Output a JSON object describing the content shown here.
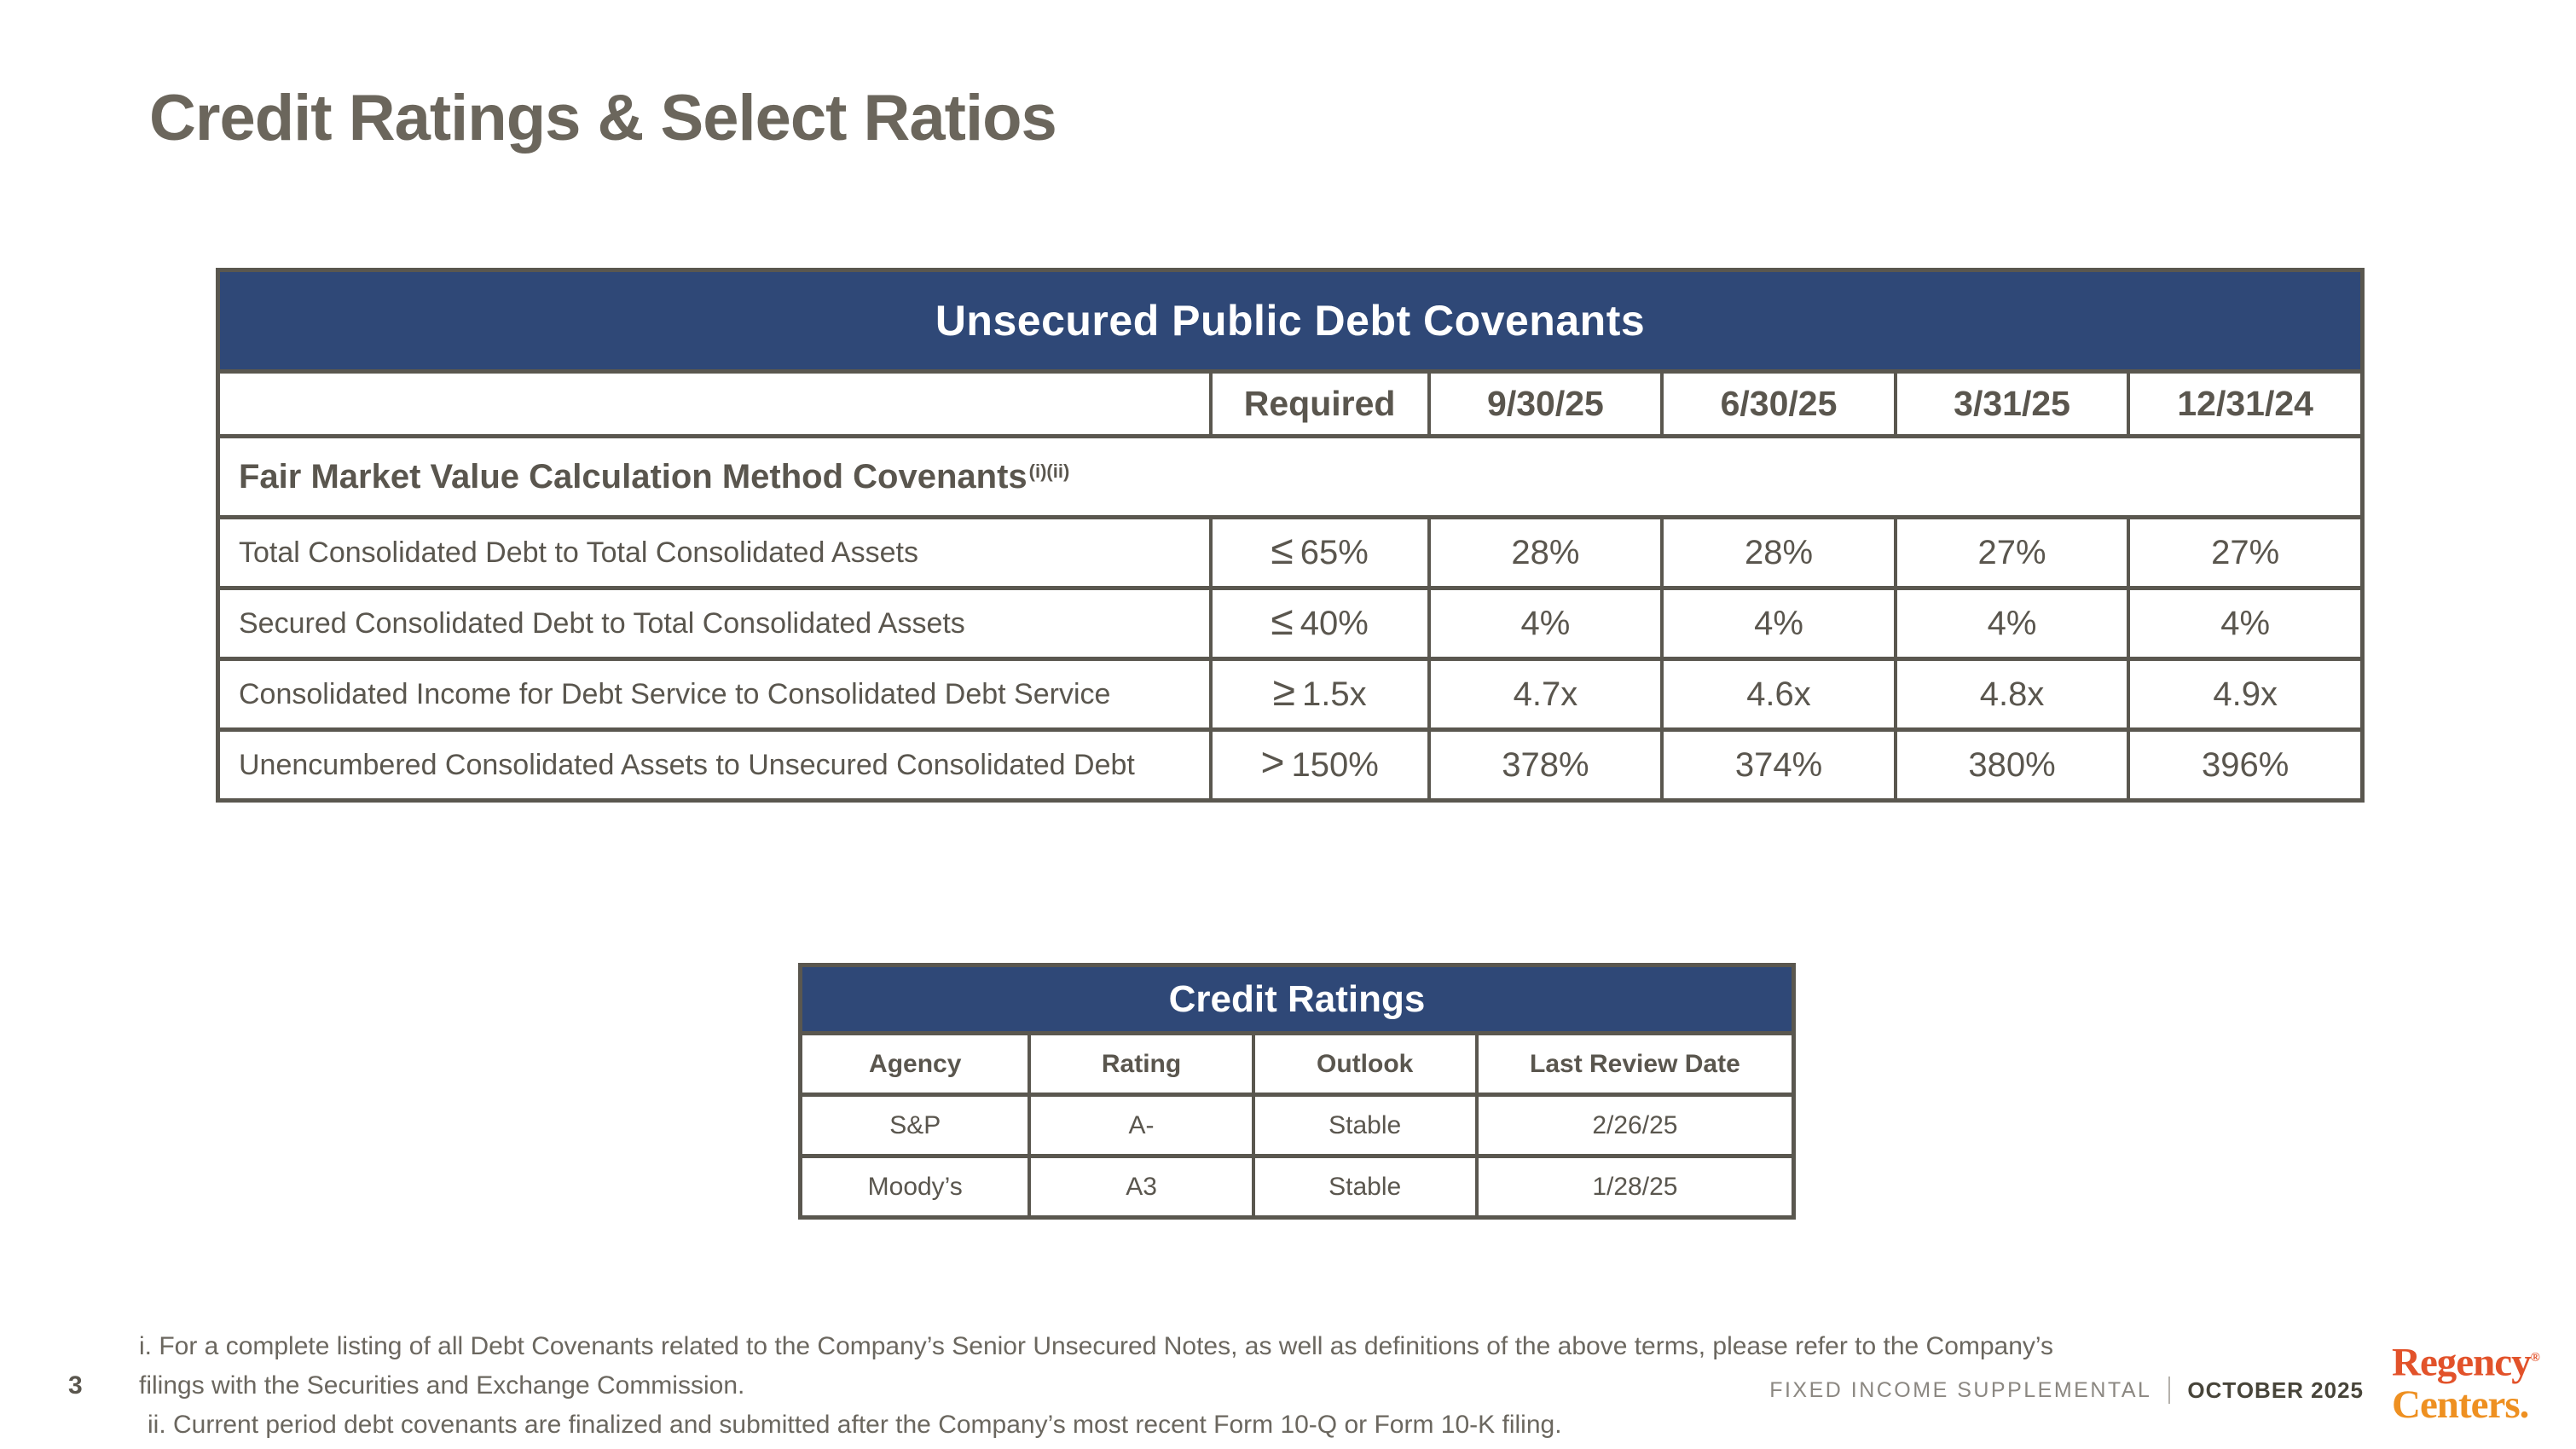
{
  "slide": {
    "title": "Credit Ratings & Select Ratios",
    "page_number": "3"
  },
  "covenants_table": {
    "title": "Unsecured Public Debt Covenants",
    "columns": [
      "",
      "Required",
      "9/30/25",
      "6/30/25",
      "3/31/25",
      "12/31/24"
    ],
    "section_label": "Fair Market Value Calculation Method Covenants",
    "section_superscript": "(i)(ii)",
    "rows": [
      {
        "label": "Total Consolidated Debt to Total Consolidated Assets",
        "required_symbol": "≤",
        "required_value": "65%",
        "values": [
          "28%",
          "28%",
          "27%",
          "27%"
        ]
      },
      {
        "label": "Secured Consolidated Debt to Total Consolidated Assets",
        "required_symbol": "≤",
        "required_value": "40%",
        "values": [
          "4%",
          "4%",
          "4%",
          "4%"
        ]
      },
      {
        "label": "Consolidated Income for Debt Service to Consolidated Debt Service",
        "required_symbol": "≥",
        "required_value": "1.5x",
        "values": [
          "4.7x",
          "4.6x",
          "4.8x",
          "4.9x"
        ]
      },
      {
        "label": "Unencumbered Consolidated Assets to Unsecured Consolidated Debt",
        "required_symbol": ">",
        "required_value": "150%",
        "values": [
          "378%",
          "374%",
          "380%",
          "396%"
        ]
      }
    ]
  },
  "ratings_table": {
    "title": "Credit Ratings",
    "columns": [
      "Agency",
      "Rating",
      "Outlook",
      "Last Review Date"
    ],
    "rows": [
      {
        "agency": "S&P",
        "rating": "A-",
        "outlook": "Stable",
        "last_review": "2/26/25"
      },
      {
        "agency": "Moody’s",
        "rating": "A3",
        "outlook": "Stable",
        "last_review": "1/28/25"
      }
    ]
  },
  "footnotes": {
    "line1": "i. For a complete listing of all Debt Covenants related to the Company’s Senior Unsecured Notes, as well as definitions of the above terms, please refer to the Company’s",
    "line2": "filings with the Securities and Exchange Commission.",
    "line3": "ii. Current period debt covenants are finalized and submitted after the Company’s most recent Form 10-Q or Form 10-K filing."
  },
  "footer": {
    "left_label": "FIXED INCOME SUPPLEMENTAL",
    "right_label": "OCTOBER 2025"
  },
  "logo": {
    "line1": "Regency",
    "mark": "®",
    "line2": "Centers."
  },
  "colors": {
    "navy": "#2f4877",
    "border": "#5a574f",
    "ink": "#5a564e",
    "title_gray": "#6b665c",
    "logo_red": "#e2522a",
    "logo_orange": "#ee9021"
  }
}
